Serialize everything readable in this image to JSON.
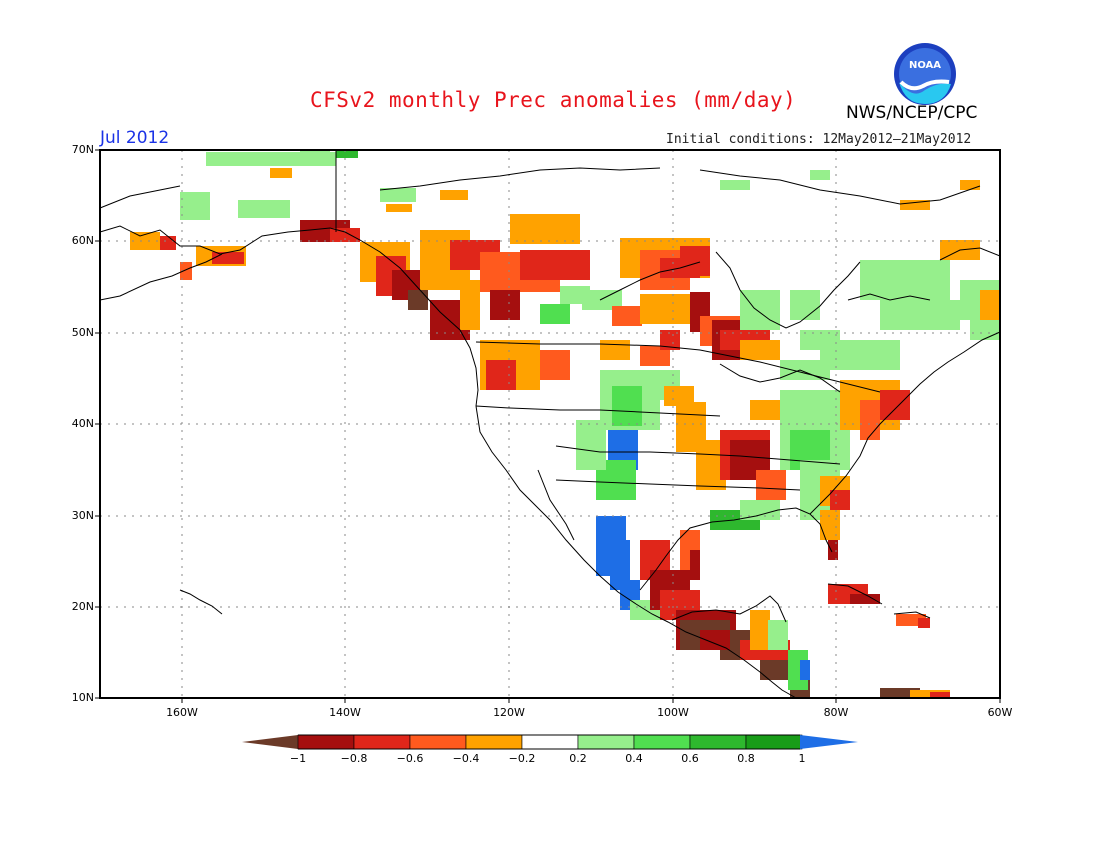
{
  "header": {
    "title": "CFSv2 monthly Prec anomalies (mm/day)",
    "month": "Jul 2012",
    "initial_conditions": "Initial conditions: 12May2012–21May2012",
    "org": "NWS/NCEP/CPC",
    "logo_text": "NOAA"
  },
  "axes": {
    "lat_labels": [
      "70N",
      "60N",
      "50N",
      "40N",
      "30N",
      "20N",
      "10N"
    ],
    "lon_labels": [
      "160W",
      "140W",
      "120W",
      "100W",
      "80W",
      "60W"
    ]
  },
  "colorbar": {
    "labels": [
      "−1",
      "−0.8",
      "−0.6",
      "−0.4",
      "−0.2",
      "0.2",
      "0.4",
      "0.6",
      "0.8",
      "1"
    ],
    "colors": {
      "below_min": "#6b3a28",
      "bins": [
        "#a50f0f",
        "#e0261a",
        "#ff5a1e",
        "#ffa200",
        "#ffffff",
        "#96ef8c",
        "#50df50",
        "#2eb82e",
        "#189c18"
      ],
      "above_max": "#1e6ee6"
    }
  },
  "colors": {
    "title": "#e8141c",
    "month": "#1a32e6",
    "dark_brown": "#6b3a28",
    "dark_red": "#a50f0f",
    "red": "#e0261a",
    "orange_red": "#ff5a1e",
    "orange": "#ffa200",
    "light_green": "#96ef8c",
    "green": "#50df50",
    "mid_green": "#2eb82e",
    "dark_green": "#189c18",
    "blue": "#1e6ee6"
  }
}
